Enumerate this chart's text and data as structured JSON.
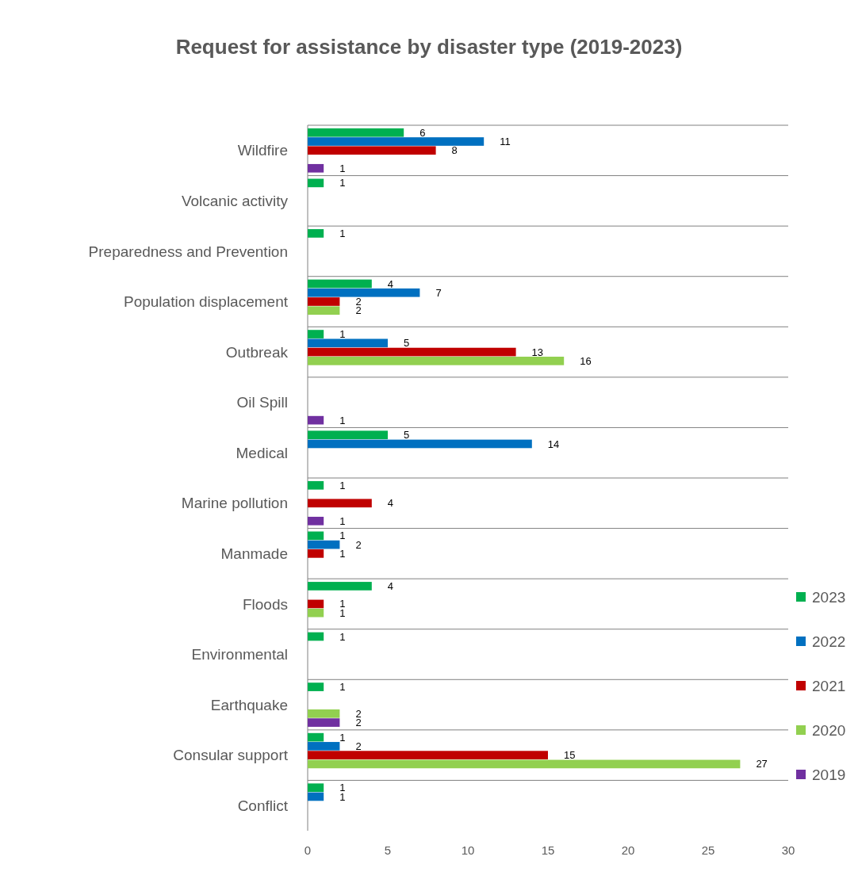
{
  "chart_data": {
    "type": "bar",
    "orientation": "horizontal",
    "title": "Request for assistance by disaster type (2019-2023)",
    "categories": [
      "Wildfire",
      "Volcanic activity",
      "Preparedness and Prevention",
      "Population displacement",
      "Outbreak",
      "Oil Spill",
      "Medical",
      "Marine pollution",
      "Manmade",
      "Floods",
      "Environmental",
      "Earthquake",
      "Consular support",
      "Conflict"
    ],
    "series": [
      {
        "name": "2023",
        "color": "#00b050",
        "values": [
          6,
          1,
          1,
          4,
          1,
          null,
          5,
          1,
          1,
          4,
          1,
          1,
          1,
          1
        ]
      },
      {
        "name": "2022",
        "color": "#0070c0",
        "values": [
          11,
          null,
          null,
          7,
          5,
          null,
          14,
          null,
          2,
          null,
          null,
          null,
          2,
          1
        ]
      },
      {
        "name": "2021",
        "color": "#c00000",
        "values": [
          8,
          null,
          null,
          2,
          13,
          null,
          null,
          4,
          1,
          1,
          null,
          null,
          15,
          null
        ]
      },
      {
        "name": "2020",
        "color": "#92d050",
        "values": [
          null,
          null,
          null,
          2,
          16,
          null,
          null,
          null,
          null,
          1,
          null,
          2,
          27,
          null
        ]
      },
      {
        "name": "2019",
        "color": "#7030a0",
        "values": [
          1,
          null,
          null,
          null,
          null,
          1,
          null,
          1,
          null,
          null,
          null,
          2,
          null,
          null
        ]
      }
    ],
    "xlim": [
      0,
      30
    ],
    "xticks": [
      0,
      5,
      10,
      15,
      20,
      25,
      30
    ],
    "grid": "y",
    "legend": "right",
    "data_labels": true
  }
}
